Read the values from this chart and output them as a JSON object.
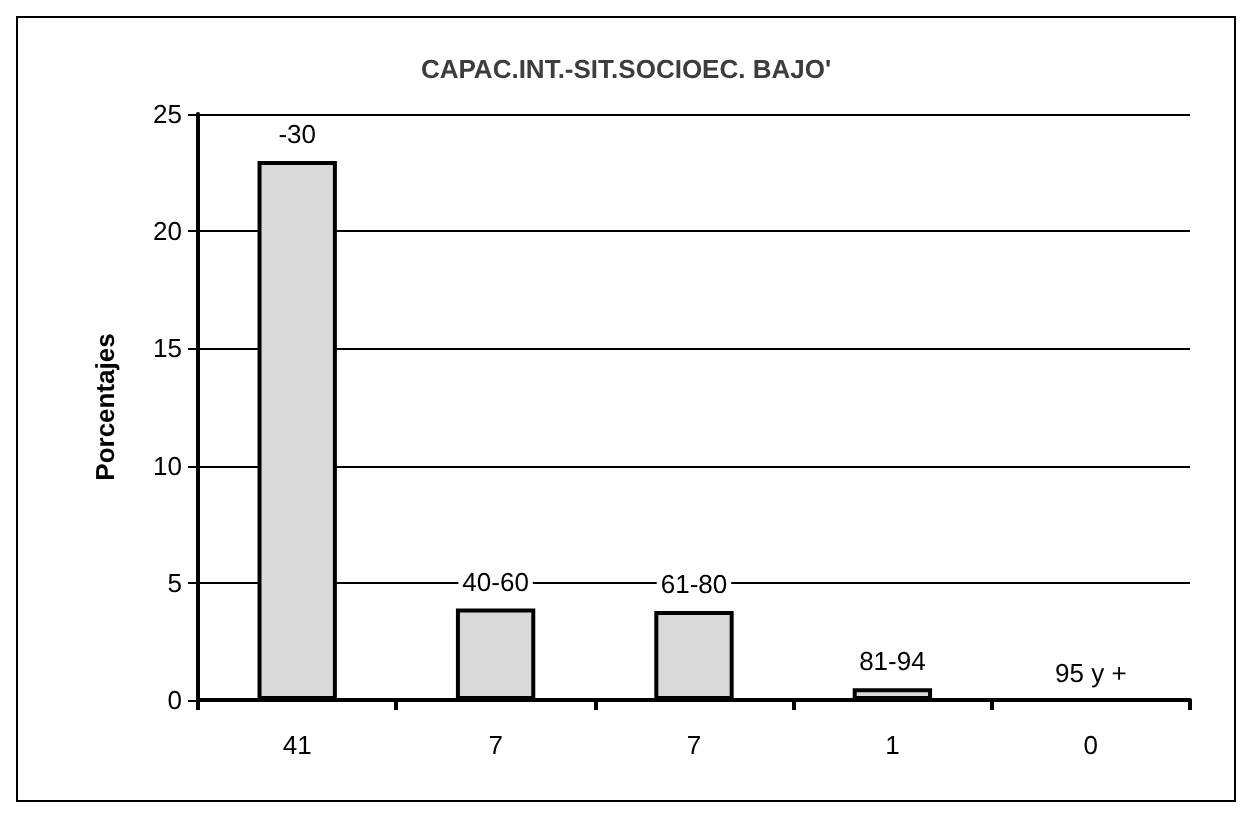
{
  "chart_data": {
    "type": "bar",
    "title": "CAPAC.INT.-SIT.SOCIOEC. BAJO'",
    "ylabel": "Porcentajes",
    "categories": [
      "41",
      "7",
      "7",
      "1",
      "0"
    ],
    "values": [
      23,
      3.9,
      3.8,
      0.5,
      0
    ],
    "annotations": [
      "-30",
      "40-60",
      "61-80",
      "81-94",
      "95 y +"
    ],
    "color": "#d9d9d9",
    "ylim": [
      0,
      25
    ],
    "yticks": [
      0,
      5,
      10,
      15,
      20,
      25
    ],
    "grid": "y"
  }
}
